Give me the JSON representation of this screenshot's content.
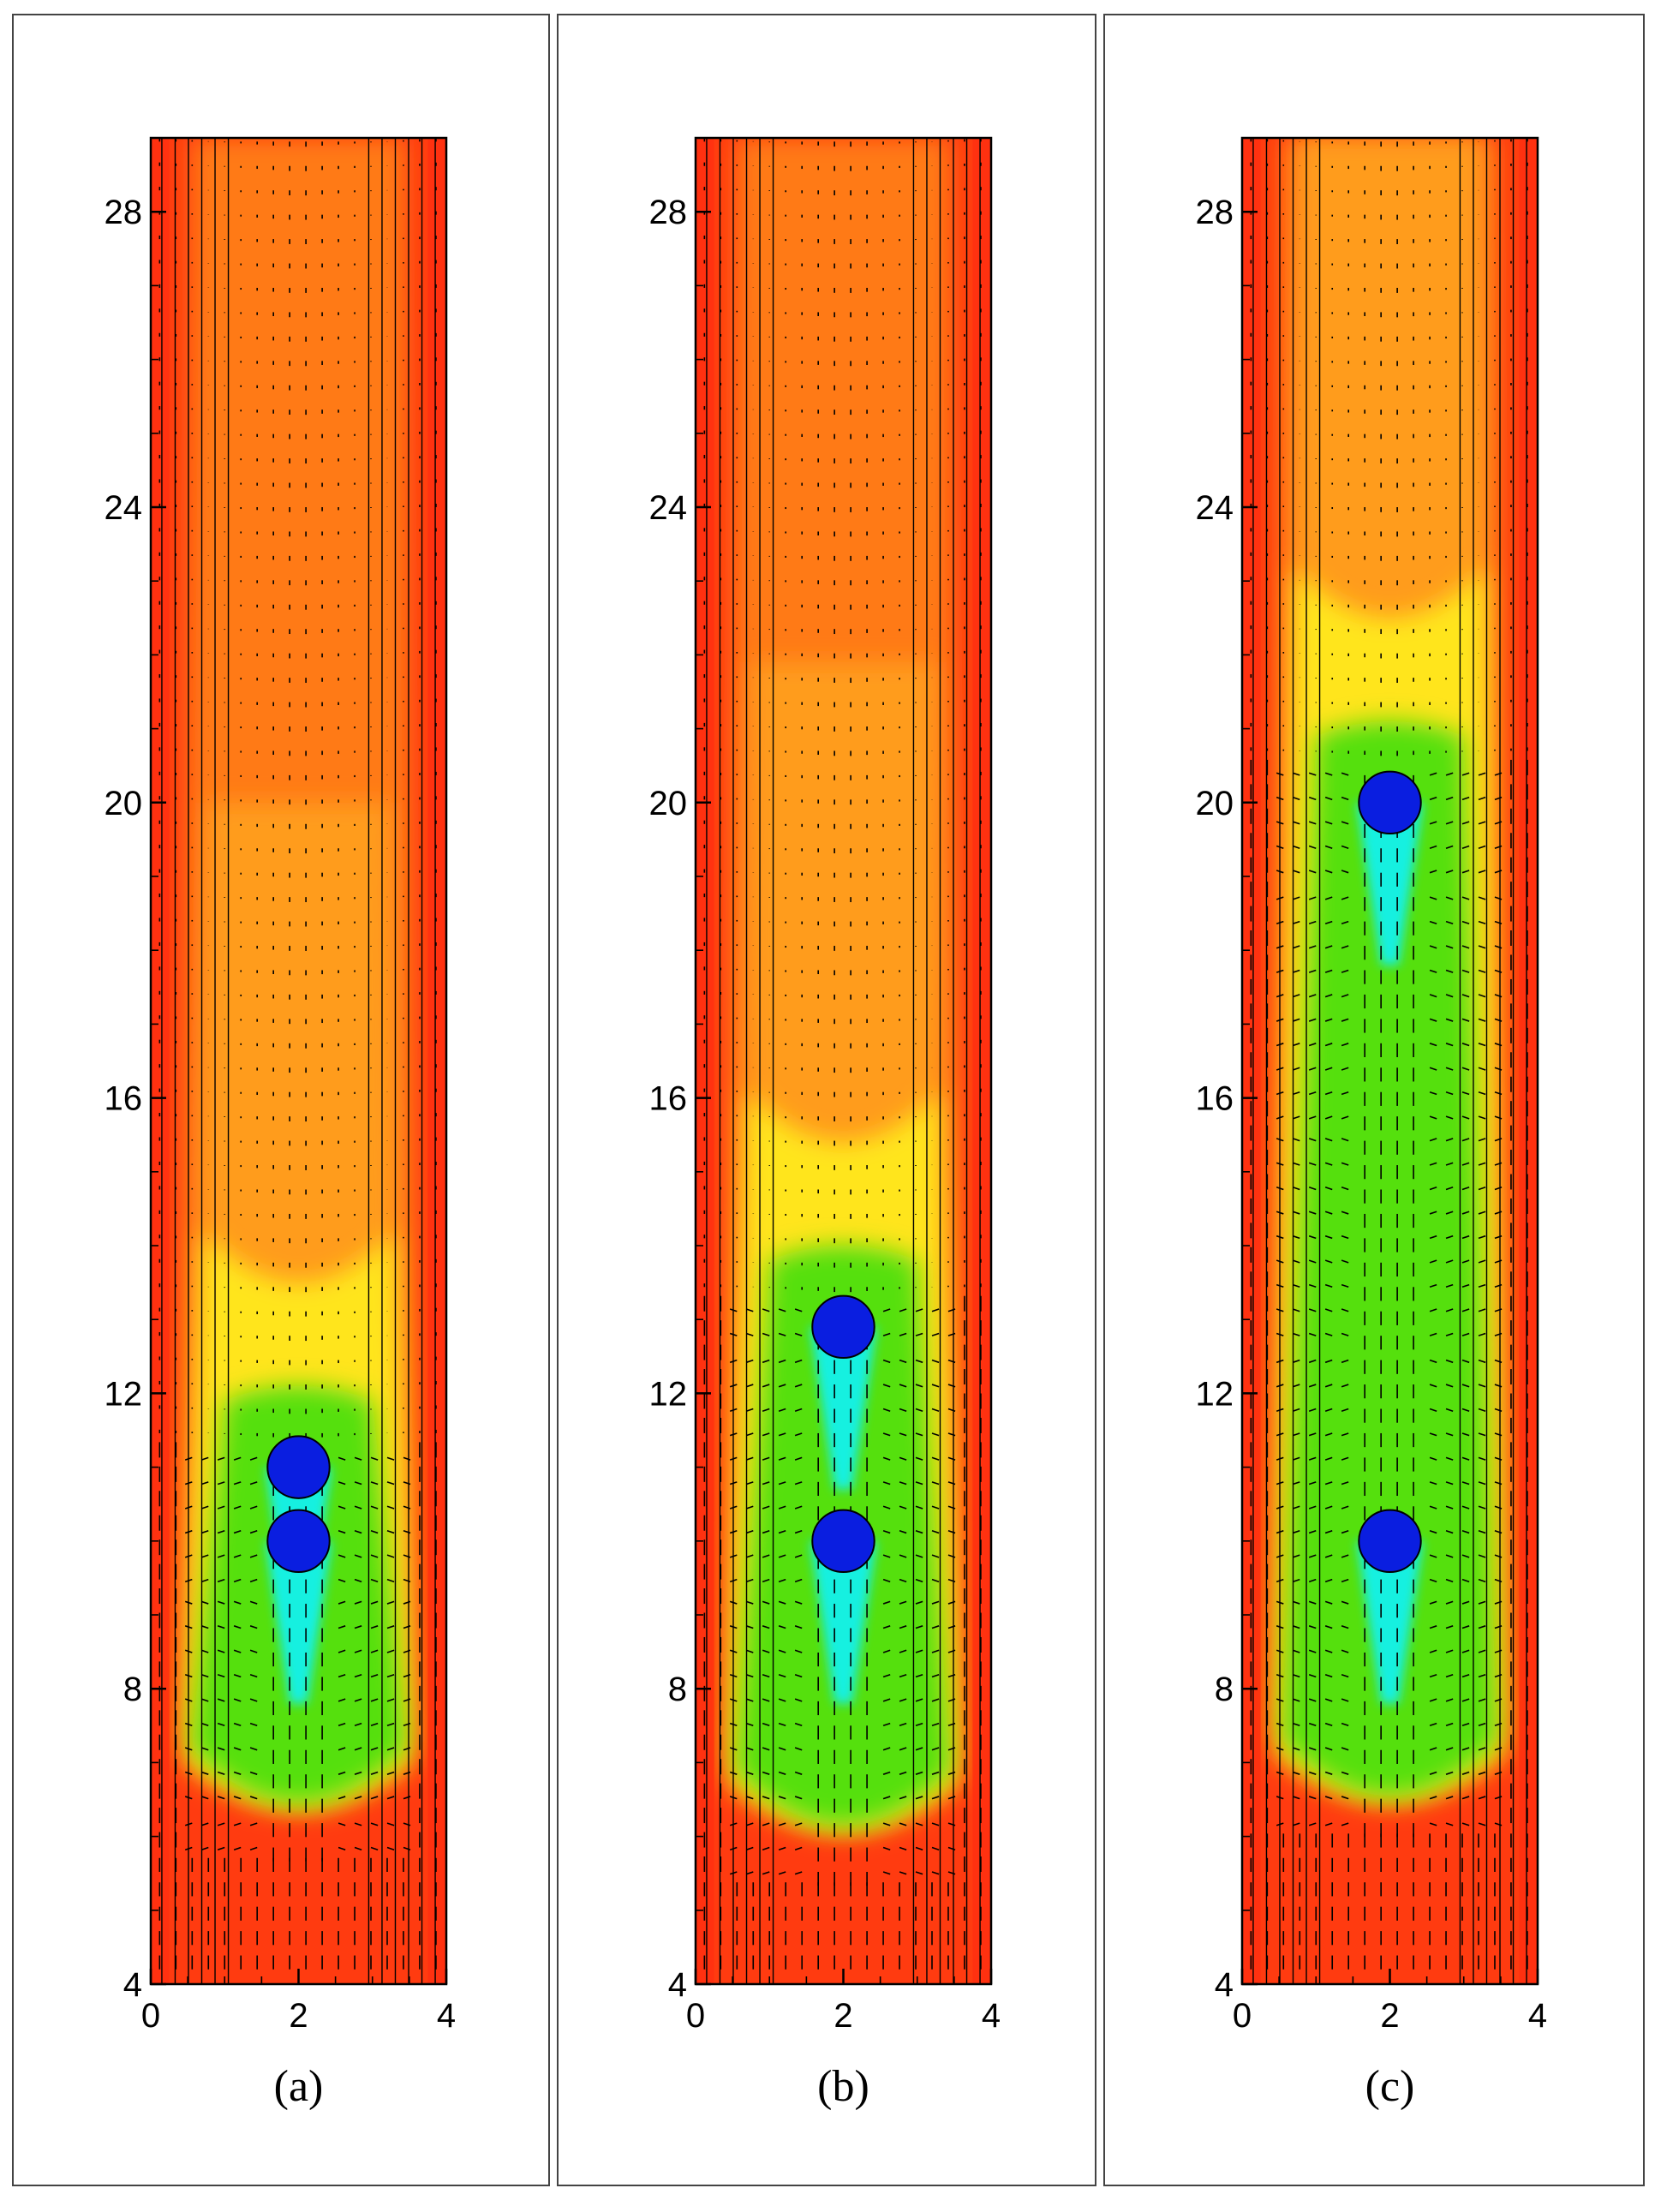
{
  "chart_data": [
    {
      "type": "heatmap",
      "caption": "(a)",
      "xlim": [
        0,
        4
      ],
      "ylim": [
        4,
        29
      ],
      "xticks": [
        0,
        2,
        4
      ],
      "yticks": [
        4,
        8,
        12,
        16,
        20,
        24,
        28
      ],
      "particles": [
        {
          "x": 2,
          "y": 11.0
        },
        {
          "x": 2,
          "y": 10.0
        }
      ],
      "wake_tail_y": 5.8,
      "vectors": true,
      "colormap": [
        "#0000ff",
        "#00ffff",
        "#00ff00",
        "#ffff00",
        "#ff9900",
        "#ff3300"
      ]
    },
    {
      "type": "heatmap",
      "caption": "(b)",
      "xlim": [
        0,
        4
      ],
      "ylim": [
        4,
        29
      ],
      "xticks": [
        0,
        2,
        4
      ],
      "yticks": [
        4,
        8,
        12,
        16,
        20,
        24,
        28
      ],
      "particles": [
        {
          "x": 2,
          "y": 12.9
        },
        {
          "x": 2,
          "y": 10.0
        }
      ],
      "wake_tail_y": 5.5,
      "vectors": true,
      "colormap": [
        "#0000ff",
        "#00ffff",
        "#00ff00",
        "#ffff00",
        "#ff9900",
        "#ff3300"
      ]
    },
    {
      "type": "heatmap",
      "caption": "(c)",
      "xlim": [
        0,
        4
      ],
      "ylim": [
        4,
        29
      ],
      "xticks": [
        0,
        2,
        4
      ],
      "yticks": [
        4,
        8,
        12,
        16,
        20,
        24,
        28
      ],
      "particles": [
        {
          "x": 2,
          "y": 20.0
        },
        {
          "x": 2,
          "y": 10.0
        }
      ],
      "wake_tail_y": 5.9,
      "vectors": true,
      "colormap": [
        "#0000ff",
        "#00ffff",
        "#00ff00",
        "#ffff00",
        "#ff9900",
        "#ff3300"
      ]
    }
  ]
}
